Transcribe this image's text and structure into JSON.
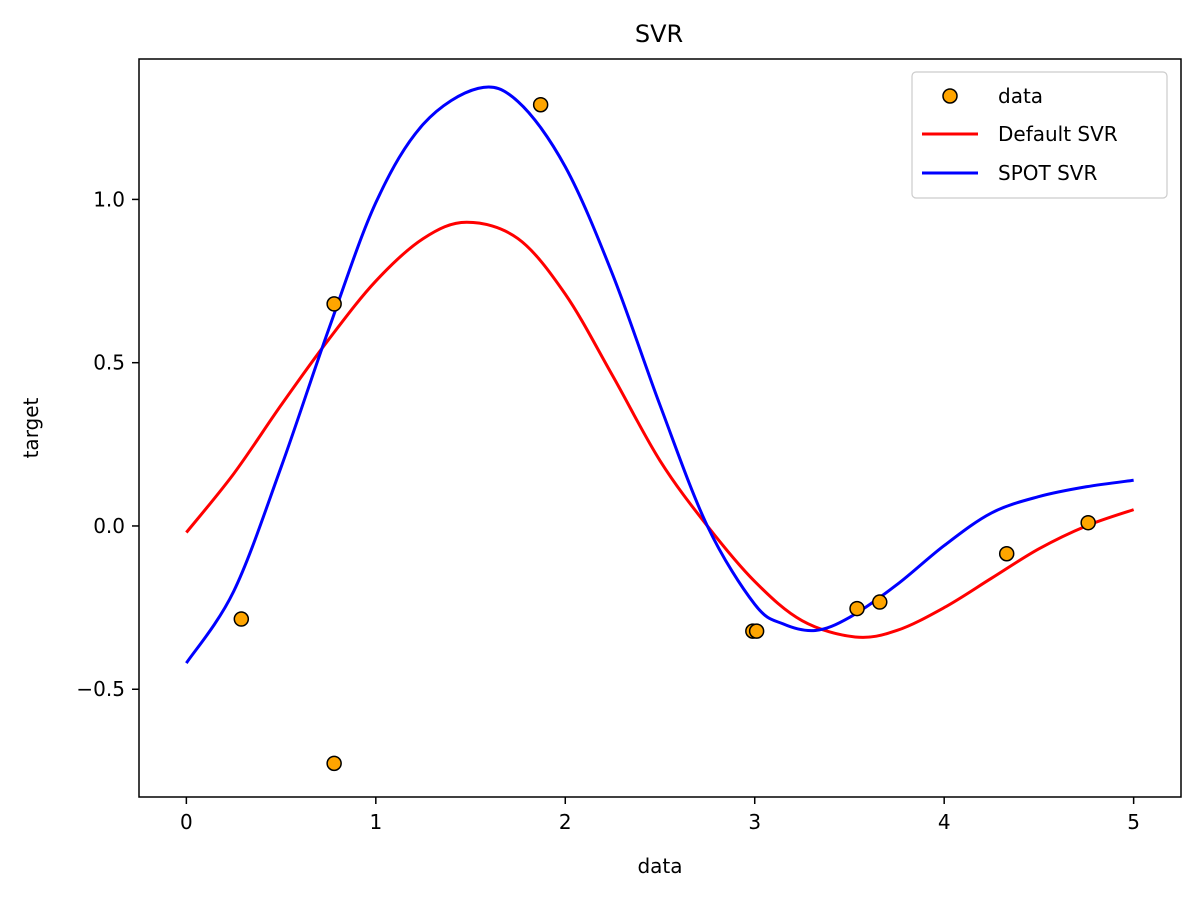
{
  "chart_data": {
    "type": "line",
    "title": "SVR",
    "xlabel": "data",
    "ylabel": "target",
    "xlim": [
      -0.25,
      5.25
    ],
    "ylim": [
      -0.83,
      1.43
    ],
    "xticks": [
      0,
      1,
      2,
      3,
      4,
      5
    ],
    "xtick_labels": [
      "0",
      "1",
      "2",
      "3",
      "4",
      "5"
    ],
    "yticks": [
      -0.5,
      0.0,
      0.5,
      1.0
    ],
    "ytick_labels": [
      "−0.5",
      "0.0",
      "0.5",
      "1.0"
    ],
    "grid": false,
    "legend_position": "top-right",
    "scatter": {
      "name": "data",
      "color": "#ffa500",
      "edgecolor": "#000000",
      "points": [
        {
          "x": 0.29,
          "y": -0.285
        },
        {
          "x": 0.78,
          "y": 0.68
        },
        {
          "x": 0.78,
          "y": -0.727
        },
        {
          "x": 1.87,
          "y": 1.29
        },
        {
          "x": 2.99,
          "y": -0.322
        },
        {
          "x": 3.01,
          "y": -0.322
        },
        {
          "x": 3.54,
          "y": -0.253
        },
        {
          "x": 3.66,
          "y": -0.233
        },
        {
          "x": 4.33,
          "y": -0.085
        },
        {
          "x": 4.76,
          "y": 0.01
        }
      ]
    },
    "series": [
      {
        "name": "Default SVR",
        "color": "#ff0000",
        "x": [
          0.0,
          0.25,
          0.5,
          0.75,
          1.0,
          1.25,
          1.48,
          1.75,
          2.0,
          2.25,
          2.5,
          2.75,
          3.0,
          3.25,
          3.53,
          3.75,
          4.0,
          4.25,
          4.5,
          4.75,
          5.0
        ],
        "y": [
          -0.02,
          0.16,
          0.37,
          0.57,
          0.75,
          0.88,
          0.93,
          0.88,
          0.71,
          0.46,
          0.2,
          0.0,
          -0.17,
          -0.29,
          -0.34,
          -0.32,
          -0.25,
          -0.16,
          -0.07,
          0.0,
          0.05
        ]
      },
      {
        "name": "SPOT SVR",
        "color": "#0000ff",
        "x": [
          0.0,
          0.25,
          0.5,
          0.75,
          1.0,
          1.25,
          1.54,
          1.75,
          2.0,
          2.25,
          2.5,
          2.75,
          3.0,
          3.15,
          3.32,
          3.5,
          3.75,
          4.0,
          4.25,
          4.5,
          4.75,
          5.0
        ],
        "y": [
          -0.42,
          -0.2,
          0.18,
          0.6,
          0.99,
          1.23,
          1.34,
          1.3,
          1.1,
          0.77,
          0.37,
          0.0,
          -0.24,
          -0.3,
          -0.32,
          -0.28,
          -0.18,
          -0.06,
          0.04,
          0.09,
          0.12,
          0.14
        ]
      }
    ]
  }
}
